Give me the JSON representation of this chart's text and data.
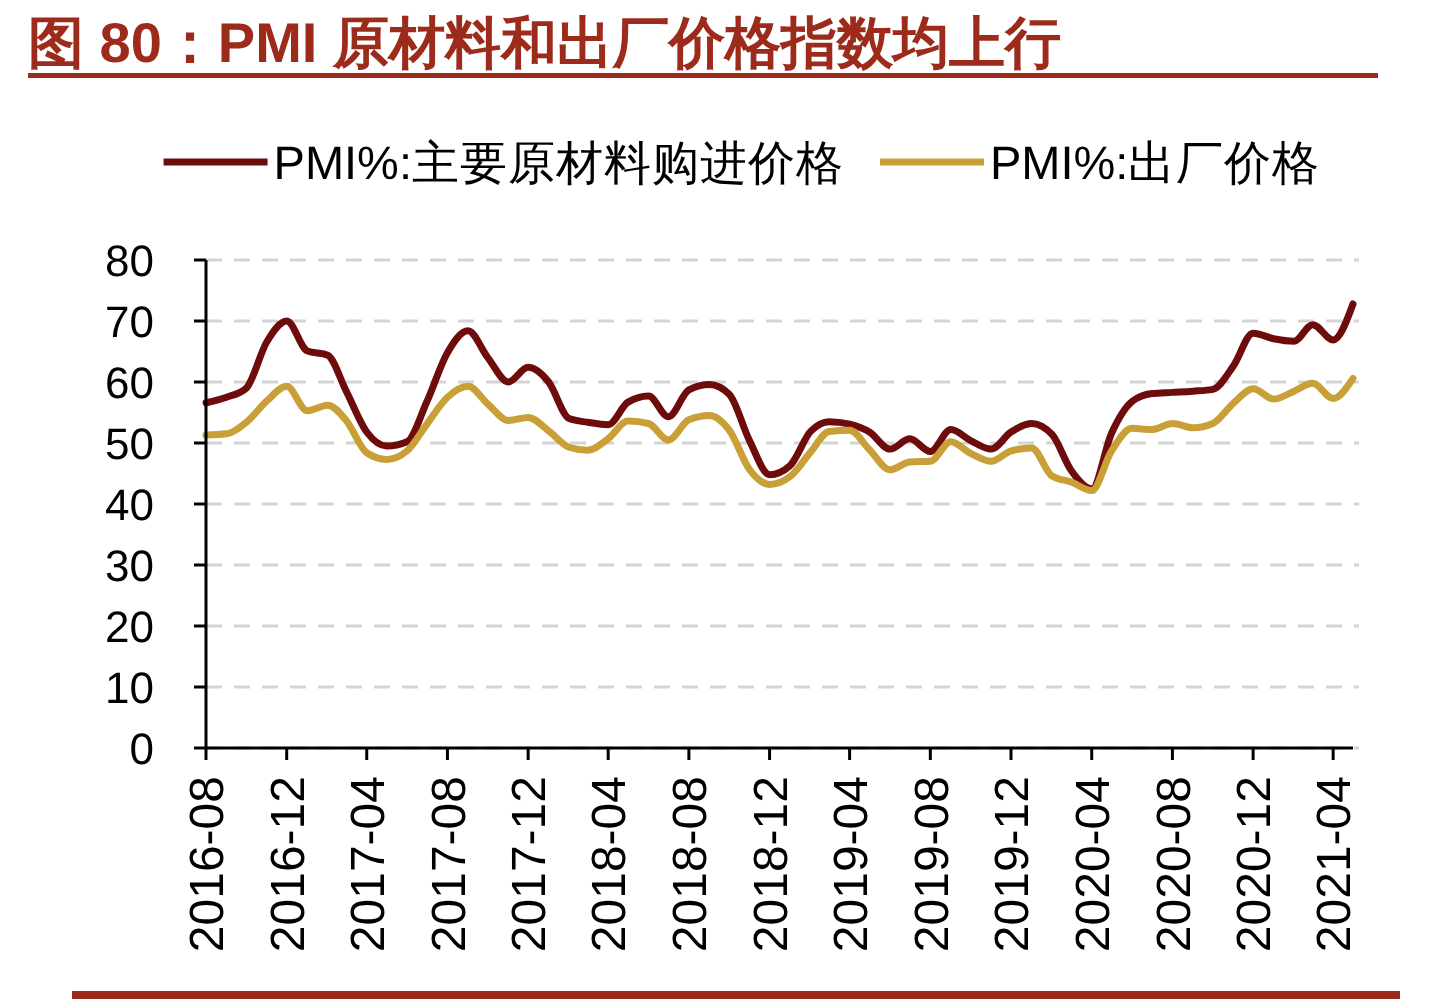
{
  "chart_data": {
    "type": "line",
    "title": "图 80：PMI 原材料和出厂价格指数均上行",
    "x": [
      "2016-08",
      "2016-09",
      "2016-10",
      "2016-11",
      "2016-12",
      "2017-01",
      "2017-02",
      "2017-03",
      "2017-04",
      "2017-05",
      "2017-06",
      "2017-07",
      "2017-08",
      "2017-09",
      "2017-10",
      "2017-11",
      "2017-12",
      "2018-01",
      "2018-02",
      "2018-03",
      "2018-04",
      "2018-05",
      "2018-06",
      "2018-07",
      "2018-08",
      "2018-09",
      "2018-10",
      "2018-11",
      "2018-12",
      "2019-01",
      "2019-02",
      "2019-03",
      "2019-04",
      "2019-05",
      "2019-06",
      "2019-07",
      "2019-08",
      "2019-09",
      "2019-10",
      "2019-11",
      "2019-12",
      "2020-01",
      "2020-02",
      "2020-03",
      "2020-04",
      "2020-05",
      "2020-06",
      "2020-07",
      "2020-08",
      "2020-09",
      "2020-10",
      "2020-11",
      "2020-12",
      "2021-01",
      "2021-02",
      "2021-03",
      "2021-04",
      "2021-05"
    ],
    "series": [
      {
        "name": "PMI%:主要原材料购进价格",
        "color": "#6e0c0c",
        "values": [
          56.6,
          57.5,
          59.0,
          66.6,
          70.0,
          65.1,
          64.4,
          58.5,
          51.8,
          49.5,
          50.2,
          56.8,
          64.8,
          68.4,
          64.0,
          60.0,
          62.4,
          60.0,
          54.0,
          53.4,
          53.0,
          56.7,
          57.7,
          54.3,
          58.7,
          59.6,
          58.0,
          50.3,
          44.8,
          46.3,
          51.9,
          53.5,
          53.1,
          51.8,
          49.0,
          50.7,
          48.6,
          52.2,
          50.4,
          49.0,
          51.8,
          53.2,
          51.4,
          45.5,
          42.5,
          51.6,
          56.8,
          58.1,
          58.3,
          58.5,
          58.8,
          62.6,
          68.0,
          67.1,
          66.7,
          69.4,
          66.9,
          72.8
        ]
      },
      {
        "name": "PMI%:出厂价格",
        "color": "#c9a038",
        "values": [
          51.3,
          51.5,
          53.4,
          56.9,
          59.3,
          55.3,
          56.2,
          53.7,
          48.4,
          47.3,
          48.7,
          53.1,
          57.5,
          59.3,
          56.4,
          53.7,
          54.2,
          52.0,
          49.3,
          48.8,
          50.7,
          53.6,
          53.2,
          50.5,
          53.8,
          54.5,
          52.1,
          45.6,
          43.2,
          44.5,
          48.5,
          51.9,
          52.1,
          48.9,
          45.6,
          46.9,
          47.0,
          50.2,
          48.3,
          47.0,
          48.7,
          49.2,
          44.6,
          43.6,
          42.2,
          48.7,
          52.4,
          52.2,
          53.2,
          52.5,
          53.2,
          56.5,
          58.9,
          57.2,
          58.5,
          59.8,
          57.3,
          60.6
        ]
      }
    ],
    "xlim": [
      "2016-08",
      "2021-05"
    ],
    "xticks": [
      "2016-08",
      "2016-12",
      "2017-04",
      "2017-08",
      "2017-12",
      "2018-04",
      "2018-08",
      "2018-12",
      "2019-04",
      "2019-08",
      "2019-12",
      "2020-04",
      "2020-08",
      "2020-12",
      "2021-04"
    ],
    "ylim": [
      0,
      80
    ],
    "yticks": [
      0,
      10,
      20,
      30,
      40,
      50,
      60,
      70,
      80
    ],
    "grid": "y",
    "legend": "top"
  }
}
